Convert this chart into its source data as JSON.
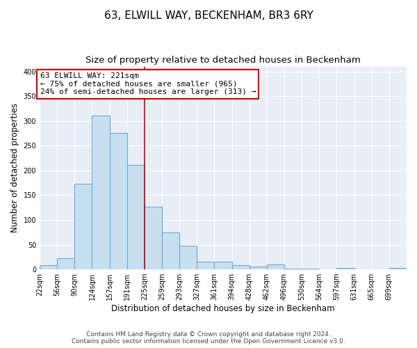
{
  "title": "63, ELWILL WAY, BECKENHAM, BR3 6RY",
  "subtitle": "Size of property relative to detached houses in Beckenham",
  "xlabel": "Distribution of detached houses by size in Beckenham",
  "ylabel": "Number of detached properties",
  "bin_labels": [
    "22sqm",
    "56sqm",
    "90sqm",
    "124sqm",
    "157sqm",
    "191sqm",
    "225sqm",
    "259sqm",
    "293sqm",
    "327sqm",
    "361sqm",
    "394sqm",
    "428sqm",
    "462sqm",
    "496sqm",
    "530sqm",
    "564sqm",
    "597sqm",
    "631sqm",
    "665sqm",
    "699sqm"
  ],
  "bar_values": [
    8,
    22,
    173,
    311,
    276,
    211,
    127,
    75,
    48,
    16,
    16,
    8,
    6,
    10,
    2,
    2,
    0,
    3,
    0,
    0,
    3
  ],
  "bar_color": "#c8dff0",
  "bar_edge_color": "#6aaad4",
  "vline_x_index": 6,
  "vline_color": "#cc0000",
  "annotation_line1": "63 ELWILL WAY: 221sqm",
  "annotation_line2": "← 75% of detached houses are smaller (965)",
  "annotation_line3": "24% of semi-detached houses are larger (313) →",
  "annotation_box_color": "white",
  "annotation_box_edge_color": "#cc0000",
  "ylim": [
    0,
    410
  ],
  "yticks": [
    0,
    50,
    100,
    150,
    200,
    250,
    300,
    350,
    400
  ],
  "footer_text": "Contains HM Land Registry data © Crown copyright and database right 2024.\nContains public sector information licensed under the Open Government Licence v3.0.",
  "fig_bg_color": "#ffffff",
  "plot_bg_color": "#e8eef5",
  "grid_color": "#ffffff",
  "title_fontsize": 11,
  "subtitle_fontsize": 9.5,
  "tick_fontsize": 7,
  "ylabel_fontsize": 8.5,
  "xlabel_fontsize": 8.5,
  "annotation_fontsize": 8,
  "footer_fontsize": 6.5
}
